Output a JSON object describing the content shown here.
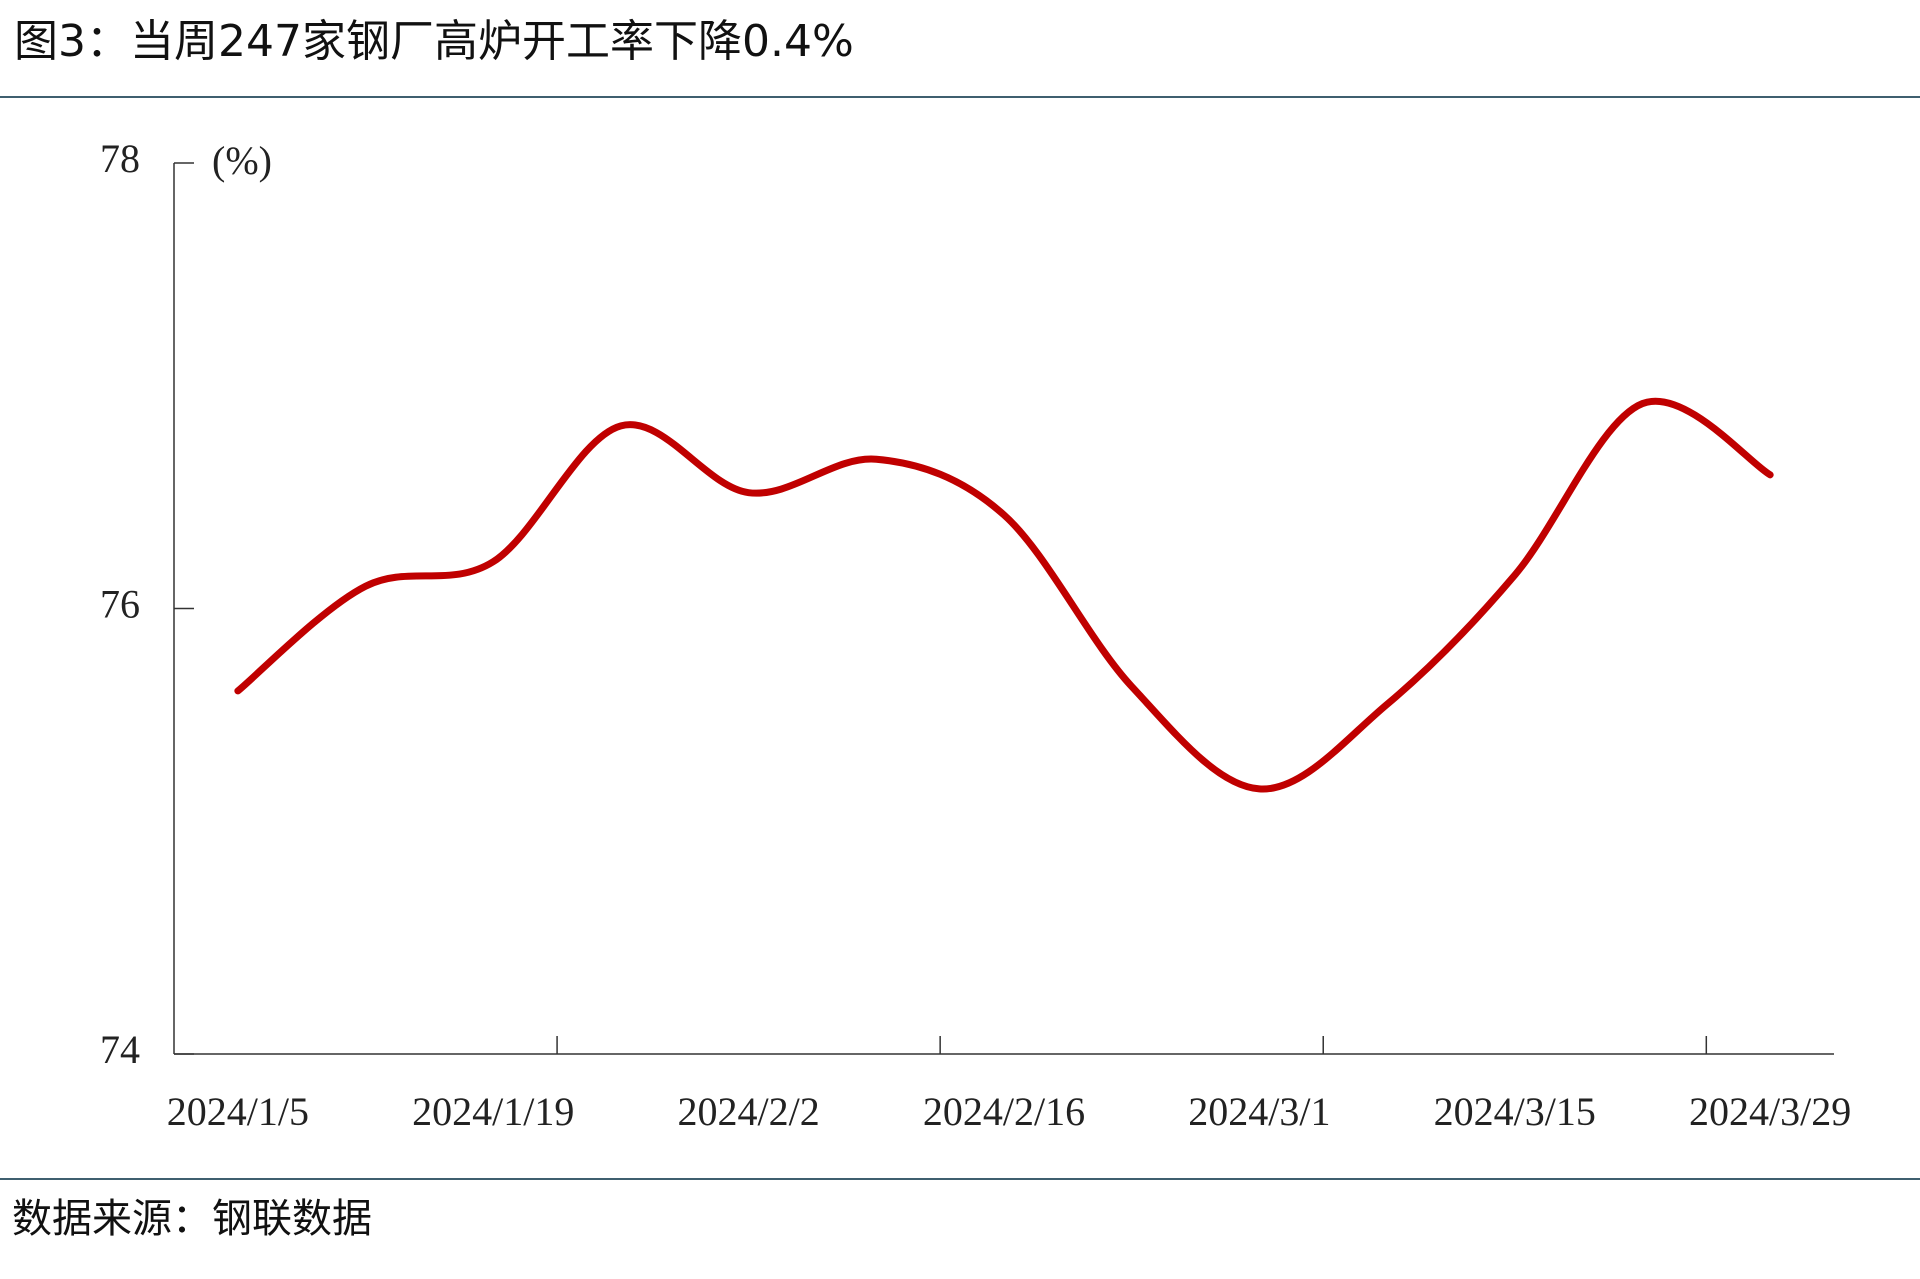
{
  "chart_data": {
    "type": "line",
    "title": "图3：当周247家钢厂高炉开工率下降0.4%",
    "unit": "(%)",
    "source": "数据来源：钢联数据",
    "categories": [
      "2024/1/5",
      null,
      "2024/1/19",
      null,
      "2024/2/2",
      null,
      "2024/2/16",
      null,
      "2024/3/1",
      null,
      "2024/3/15",
      null,
      "2024/3/29"
    ],
    "series": [
      {
        "name": "高炉开工率",
        "color": "#c00000",
        "values": [
          75.63,
          76.1,
          76.21,
          76.82,
          76.52,
          76.67,
          76.42,
          75.65,
          75.19,
          75.57,
          76.15,
          76.92,
          76.6
        ]
      }
    ],
    "ylim": [
      74,
      78
    ],
    "yticks": [
      74,
      76,
      78
    ],
    "grid": false
  }
}
